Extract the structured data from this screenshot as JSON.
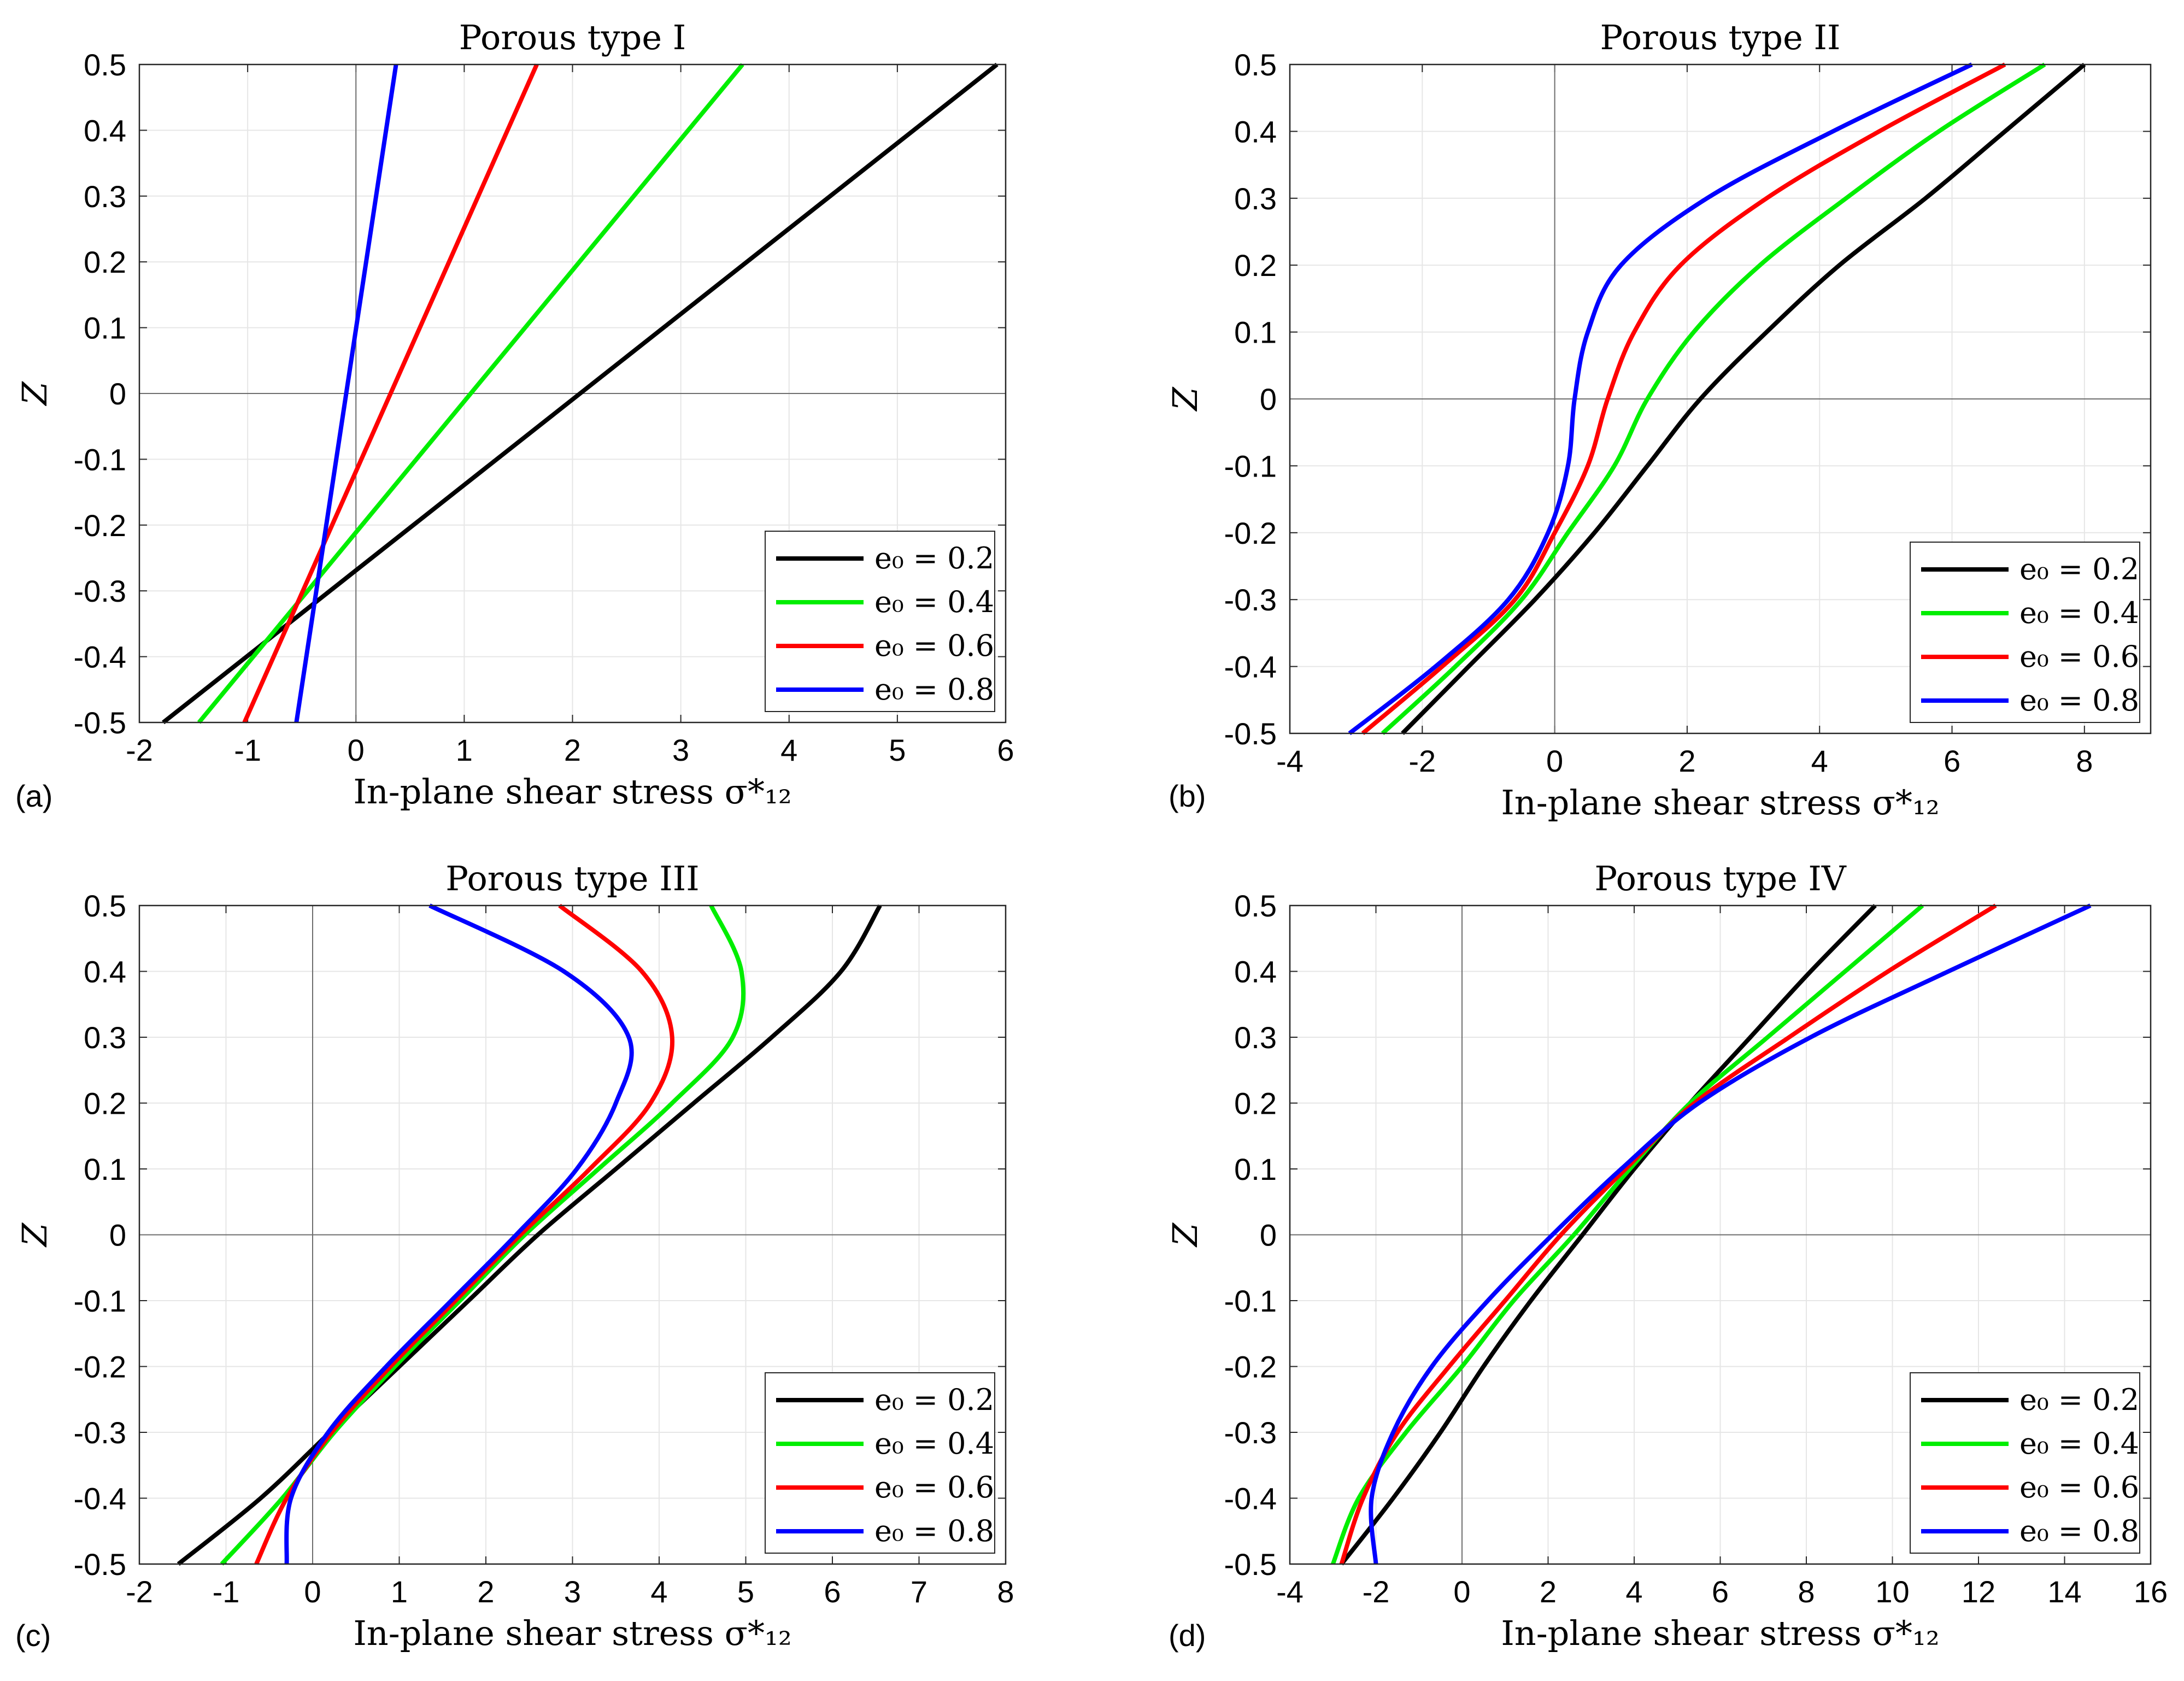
{
  "chart_data": [
    {
      "type": "line",
      "panel_label": "(a)",
      "title": "Porous type I",
      "xlabel": "In-plane shear stress σ*₁₂",
      "ylabel": "Z",
      "xlim": [
        -2,
        6
      ],
      "ylim": [
        -0.5,
        0.5
      ],
      "xticks": [
        "-2",
        "-1",
        "0",
        "1",
        "2",
        "3",
        "4",
        "5",
        "6"
      ],
      "yticks": [
        "-0.5",
        "-0.4",
        "-0.3",
        "-0.2",
        "-0.1",
        "0",
        "0.1",
        "0.2",
        "0.3",
        "0.4",
        "0.5"
      ],
      "grid": true,
      "legend_position": "bottom-right",
      "series": [
        {
          "name": "e₀ = 0.2",
          "color": "#000000",
          "x": [
            -1.78,
            5.92
          ],
          "y": [
            -0.5,
            0.5
          ]
        },
        {
          "name": "e₀ = 0.4",
          "color": "#00ee00",
          "x": [
            -1.45,
            3.57
          ],
          "y": [
            -0.5,
            0.5
          ]
        },
        {
          "name": "e₀ = 0.6",
          "color": "#ff0000",
          "x": [
            -1.03,
            1.67
          ],
          "y": [
            -0.5,
            0.5
          ]
        },
        {
          "name": "e₀ = 0.8",
          "color": "#0000ff",
          "x": [
            -0.55,
            0.37
          ],
          "y": [
            -0.5,
            0.5
          ]
        }
      ]
    },
    {
      "type": "line",
      "panel_label": "(b)",
      "title": "Porous type II",
      "xlabel": "In-plane shear stress σ*₁₂",
      "ylabel": "Z",
      "xlim": [
        -4,
        9
      ],
      "ylim": [
        -0.5,
        0.5
      ],
      "xticks": [
        "-4",
        "-2",
        "0",
        "2",
        "4",
        "6",
        "8"
      ],
      "yticks": [
        "-0.5",
        "-0.4",
        "-0.3",
        "-0.2",
        "-0.1",
        "0",
        "0.1",
        "0.2",
        "0.3",
        "0.4",
        "0.5"
      ],
      "grid": true,
      "legend_position": "bottom-right",
      "series": [
        {
          "name": "e₀ = 0.2",
          "color": "#000000",
          "x": [
            -2.3,
            -1.3,
            -0.3,
            0.6,
            1.4,
            2.2,
            3.2,
            4.3,
            5.6,
            6.8,
            8.0
          ],
          "y": [
            -0.5,
            -0.4,
            -0.3,
            -0.2,
            -0.1,
            0.0,
            0.1,
            0.2,
            0.3,
            0.4,
            0.5
          ]
        },
        {
          "name": "e₀ = 0.4",
          "color": "#00ee00",
          "x": [
            -2.6,
            -1.5,
            -0.5,
            0.2,
            0.9,
            1.4,
            2.1,
            3.1,
            4.4,
            5.8,
            7.4
          ],
          "y": [
            -0.5,
            -0.4,
            -0.3,
            -0.2,
            -0.1,
            0.0,
            0.1,
            0.2,
            0.3,
            0.4,
            0.5
          ]
        },
        {
          "name": "e₀ = 0.6",
          "color": "#ff0000",
          "x": [
            -2.9,
            -1.7,
            -0.6,
            0.0,
            0.5,
            0.8,
            1.2,
            1.9,
            3.2,
            4.9,
            6.8
          ],
          "y": [
            -0.5,
            -0.4,
            -0.3,
            -0.2,
            -0.1,
            0.0,
            0.1,
            0.2,
            0.3,
            0.4,
            0.5
          ]
        },
        {
          "name": "e₀ = 0.8",
          "color": "#0000ff",
          "x": [
            -3.1,
            -1.8,
            -0.7,
            -0.1,
            0.2,
            0.3,
            0.5,
            1.0,
            2.3,
            4.2,
            6.3
          ],
          "y": [
            -0.5,
            -0.4,
            -0.3,
            -0.2,
            -0.1,
            0.0,
            0.1,
            0.2,
            0.3,
            0.4,
            0.5
          ]
        }
      ]
    },
    {
      "type": "line",
      "panel_label": "(c)",
      "title": "Porous type III",
      "xlabel": "In-plane shear stress σ*₁₂",
      "ylabel": "Z",
      "xlim": [
        -2,
        8
      ],
      "ylim": [
        -0.5,
        0.5
      ],
      "xticks": [
        "-2",
        "-1",
        "0",
        "1",
        "2",
        "3",
        "4",
        "5",
        "6",
        "7",
        "8"
      ],
      "yticks": [
        "-0.5",
        "-0.4",
        "-0.3",
        "-0.2",
        "-0.1",
        "0",
        "0.1",
        "0.2",
        "0.3",
        "0.4",
        "0.5"
      ],
      "grid": true,
      "legend_position": "bottom-right",
      "series": [
        {
          "name": "e₀ = 0.2",
          "color": "#000000",
          "x": [
            -1.55,
            -0.6,
            0.2,
            1.0,
            1.8,
            2.6,
            3.5,
            4.4,
            5.3,
            6.1,
            6.55
          ],
          "y": [
            -0.5,
            -0.4,
            -0.3,
            -0.2,
            -0.1,
            0.0,
            0.1,
            0.2,
            0.3,
            0.4,
            0.5
          ]
        },
        {
          "name": "e₀ = 0.4",
          "color": "#00ee00",
          "x": [
            -1.05,
            -0.35,
            0.25,
            0.95,
            1.7,
            2.45,
            3.3,
            4.15,
            4.85,
            4.95,
            4.6
          ],
          "y": [
            -0.5,
            -0.4,
            -0.3,
            -0.2,
            -0.1,
            0.0,
            0.1,
            0.2,
            0.3,
            0.4,
            0.5
          ]
        },
        {
          "name": "e₀ = 0.6",
          "color": "#ff0000",
          "x": [
            -0.65,
            -0.3,
            0.22,
            0.9,
            1.65,
            2.4,
            3.2,
            3.9,
            4.15,
            3.8,
            2.85
          ],
          "y": [
            -0.5,
            -0.4,
            -0.3,
            -0.2,
            -0.1,
            0.0,
            0.1,
            0.2,
            0.3,
            0.4,
            0.5
          ]
        },
        {
          "name": "e₀ = 0.8",
          "color": "#0000ff",
          "x": [
            -0.3,
            -0.25,
            0.18,
            0.85,
            1.6,
            2.35,
            3.05,
            3.5,
            3.65,
            2.9,
            1.35
          ],
          "y": [
            -0.5,
            -0.4,
            -0.3,
            -0.2,
            -0.1,
            0.0,
            0.1,
            0.2,
            0.3,
            0.4,
            0.5
          ]
        }
      ]
    },
    {
      "type": "line",
      "panel_label": "(d)",
      "title": "Porous type IV",
      "xlabel": "In-plane shear stress σ*₁₂",
      "ylabel": "Z",
      "xlim": [
        -4,
        16
      ],
      "ylim": [
        -0.5,
        0.5
      ],
      "xticks": [
        "-4",
        "-2",
        "0",
        "2",
        "4",
        "6",
        "8",
        "10",
        "12",
        "14",
        "16"
      ],
      "yticks": [
        "-0.5",
        "-0.4",
        "-0.3",
        "-0.2",
        "-0.1",
        "0",
        "0.1",
        "0.2",
        "0.3",
        "0.4",
        "0.5"
      ],
      "grid": true,
      "legend_position": "bottom-right",
      "series": [
        {
          "name": "e₀ = 0.2",
          "color": "#000000",
          "x": [
            -2.8,
            -1.6,
            -0.5,
            0.5,
            1.6,
            2.8,
            4.0,
            5.3,
            6.7,
            8.1,
            9.6
          ],
          "y": [
            -0.5,
            -0.4,
            -0.3,
            -0.2,
            -0.1,
            0.0,
            0.1,
            0.2,
            0.3,
            0.4,
            0.5
          ]
        },
        {
          "name": "e₀ = 0.4",
          "color": "#00ee00",
          "x": [
            -3.0,
            -2.4,
            -1.3,
            0.0,
            1.2,
            2.6,
            3.9,
            5.3,
            7.1,
            8.9,
            10.7
          ],
          "y": [
            -0.5,
            -0.4,
            -0.3,
            -0.2,
            -0.1,
            0.0,
            0.1,
            0.2,
            0.3,
            0.4,
            0.5
          ]
        },
        {
          "name": "e₀ = 0.6",
          "color": "#ff0000",
          "x": [
            -2.8,
            -2.3,
            -1.5,
            -0.3,
            1.0,
            2.3,
            3.8,
            5.4,
            7.6,
            9.9,
            12.4
          ],
          "y": [
            -0.5,
            -0.4,
            -0.3,
            -0.2,
            -0.1,
            0.0,
            0.1,
            0.2,
            0.3,
            0.4,
            0.5
          ]
        },
        {
          "name": "e₀ = 0.8",
          "color": "#0000ff",
          "x": [
            -2.0,
            -2.1,
            -1.6,
            -0.7,
            0.6,
            2.1,
            3.7,
            5.5,
            8.1,
            11.3,
            14.6
          ],
          "y": [
            -0.5,
            -0.4,
            -0.3,
            -0.2,
            -0.1,
            0.0,
            0.1,
            0.2,
            0.3,
            0.4,
            0.5
          ]
        }
      ]
    }
  ]
}
